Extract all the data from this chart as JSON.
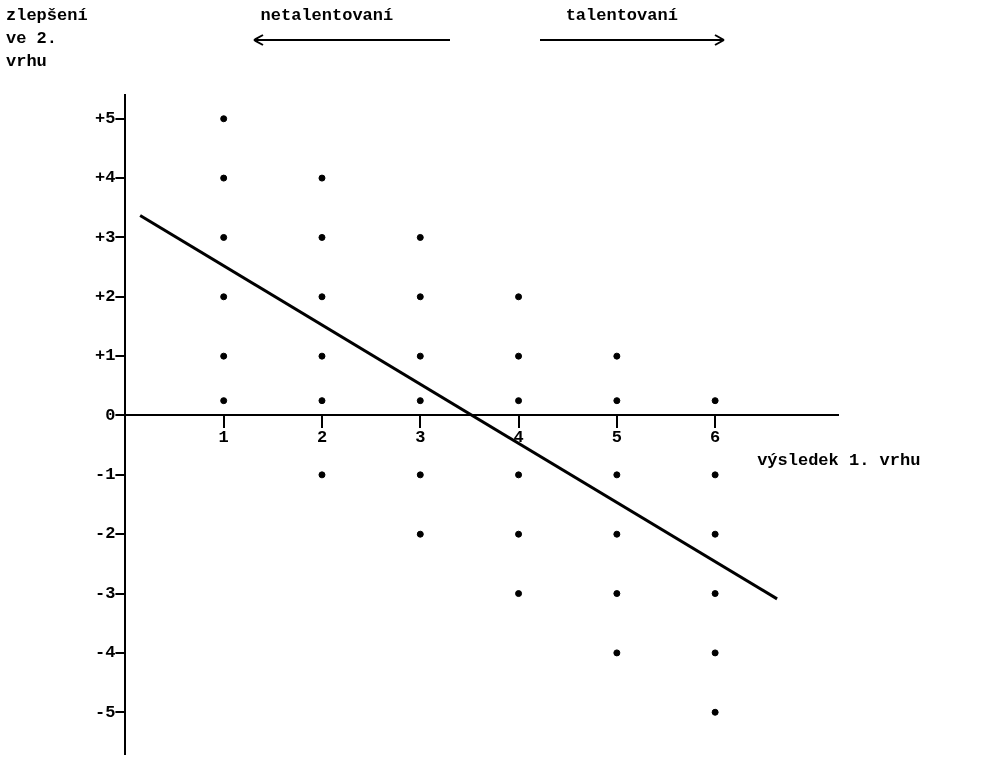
{
  "chart_data": {
    "type": "scatter",
    "xlabel": "výsledek 1. vrhu",
    "ylabel": "zlepšení ve 2. vrhu",
    "annotations": [
      "netalentovaní",
      "talentovaní"
    ],
    "xlim": [
      0,
      7.25
    ],
    "xticks": [
      1,
      2,
      3,
      4,
      5,
      6
    ],
    "ylim": [
      -5.7,
      5.4
    ],
    "yticks": [
      {
        "value": 5,
        "label": "+5"
      },
      {
        "value": 4,
        "label": "+4"
      },
      {
        "value": 3,
        "label": "+3"
      },
      {
        "value": 2,
        "label": "+2"
      },
      {
        "value": 1,
        "label": "+1"
      },
      0,
      -1,
      -2,
      -3,
      -4,
      -5
    ],
    "grid": false,
    "legend": false,
    "marker": "circle",
    "series": [
      {
        "color": "#000000",
        "x": [
          1,
          1,
          1,
          1,
          1,
          1,
          2,
          2,
          2,
          2,
          2,
          2,
          3,
          3,
          3,
          3,
          3,
          3,
          4,
          4,
          4,
          4,
          4,
          4,
          5,
          5,
          5,
          5,
          5,
          5,
          6,
          6,
          6,
          6,
          6,
          6
        ],
        "values": [
          5,
          4,
          3,
          2,
          1,
          0.25,
          4,
          3,
          2,
          1,
          0.25,
          -1,
          3,
          2,
          1,
          0.25,
          -1,
          -2,
          2,
          1,
          0.25,
          -1,
          -2,
          -3,
          1,
          0.25,
          -1,
          -2,
          -3,
          -4,
          0.25,
          -1,
          -2,
          -3,
          -4,
          -5
        ]
      },
      {
        "type": "line",
        "color": "#000000",
        "line_style": "solid",
        "marker": "none",
        "x": [
          0.15,
          6.63
        ],
        "values": [
          3.37,
          -3.09
        ]
      }
    ]
  }
}
